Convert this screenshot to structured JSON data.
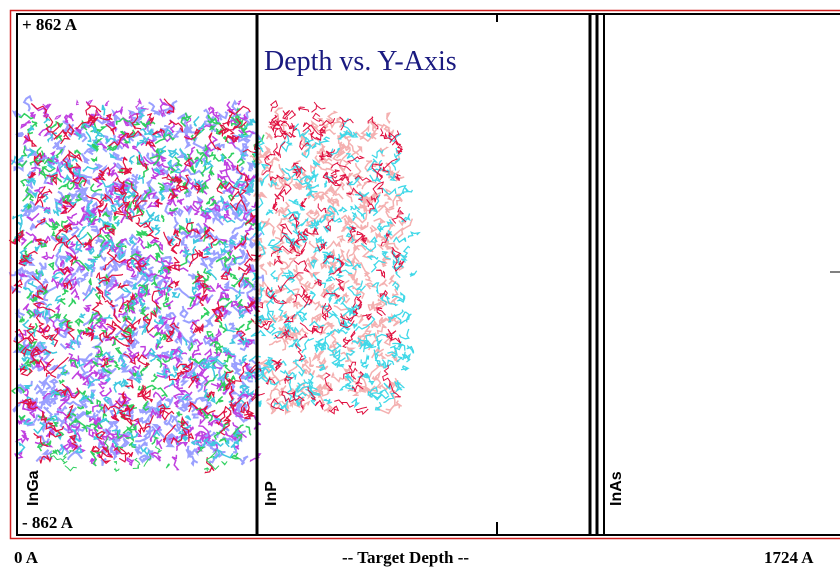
{
  "plot": {
    "title": "Depth vs. Y-Axis",
    "y_top_label": "+ 862 A",
    "y_bottom_label": "- 862 A",
    "x_start_label": "0 A",
    "x_axis_label": "-- Target Depth --",
    "x_end_label": "1724 A"
  },
  "layers": [
    {
      "label": "InGa"
    },
    {
      "label": "InP"
    },
    {
      "label": "InAs"
    }
  ]
}
